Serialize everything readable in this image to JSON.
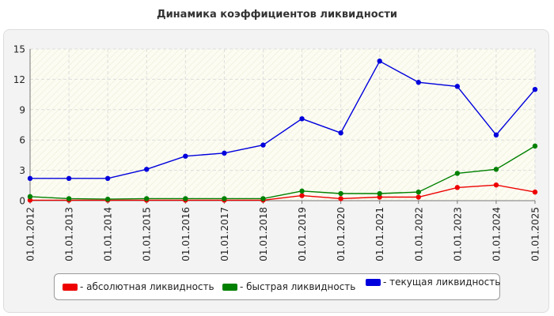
{
  "chart_data": {
    "type": "line",
    "title": "Динамика коэффициентов ликвидности",
    "xlabel": "",
    "ylabel": "",
    "x": [
      "01.01.2012",
      "01.01.2013",
      "01.01.2014",
      "01.01.2015",
      "01.01.2016",
      "01.01.2017",
      "01.01.2018",
      "01.01.2019",
      "01.01.2020",
      "01.01.2021",
      "01.01.2022",
      "01.01.2023",
      "01.01.2024",
      "01.01.2025"
    ],
    "ylim": [
      0,
      15
    ],
    "yticks": [
      "0",
      "3",
      "6",
      "9",
      "12",
      "15"
    ],
    "grid": true,
    "legend_position": "bottom",
    "series": [
      {
        "name": "- абсолютная ликвидность",
        "color": "#ee0000",
        "values": [
          0.05,
          0.05,
          0.05,
          0.05,
          0.05,
          0.05,
          0.05,
          0.5,
          0.2,
          0.35,
          0.35,
          1.3,
          1.55,
          0.85
        ]
      },
      {
        "name": "- быстрая ликвидность",
        "color": "#008000",
        "values": [
          0.4,
          0.2,
          0.15,
          0.2,
          0.2,
          0.2,
          0.2,
          0.95,
          0.7,
          0.7,
          0.85,
          2.7,
          3.1,
          5.4
        ]
      },
      {
        "name": "- текущая ликвидность",
        "color": "#0000dd",
        "values": [
          2.2,
          2.2,
          2.2,
          3.1,
          4.4,
          4.7,
          5.5,
          8.1,
          6.7,
          13.8,
          11.7,
          11.3,
          6.5,
          11.0
        ]
      }
    ]
  }
}
